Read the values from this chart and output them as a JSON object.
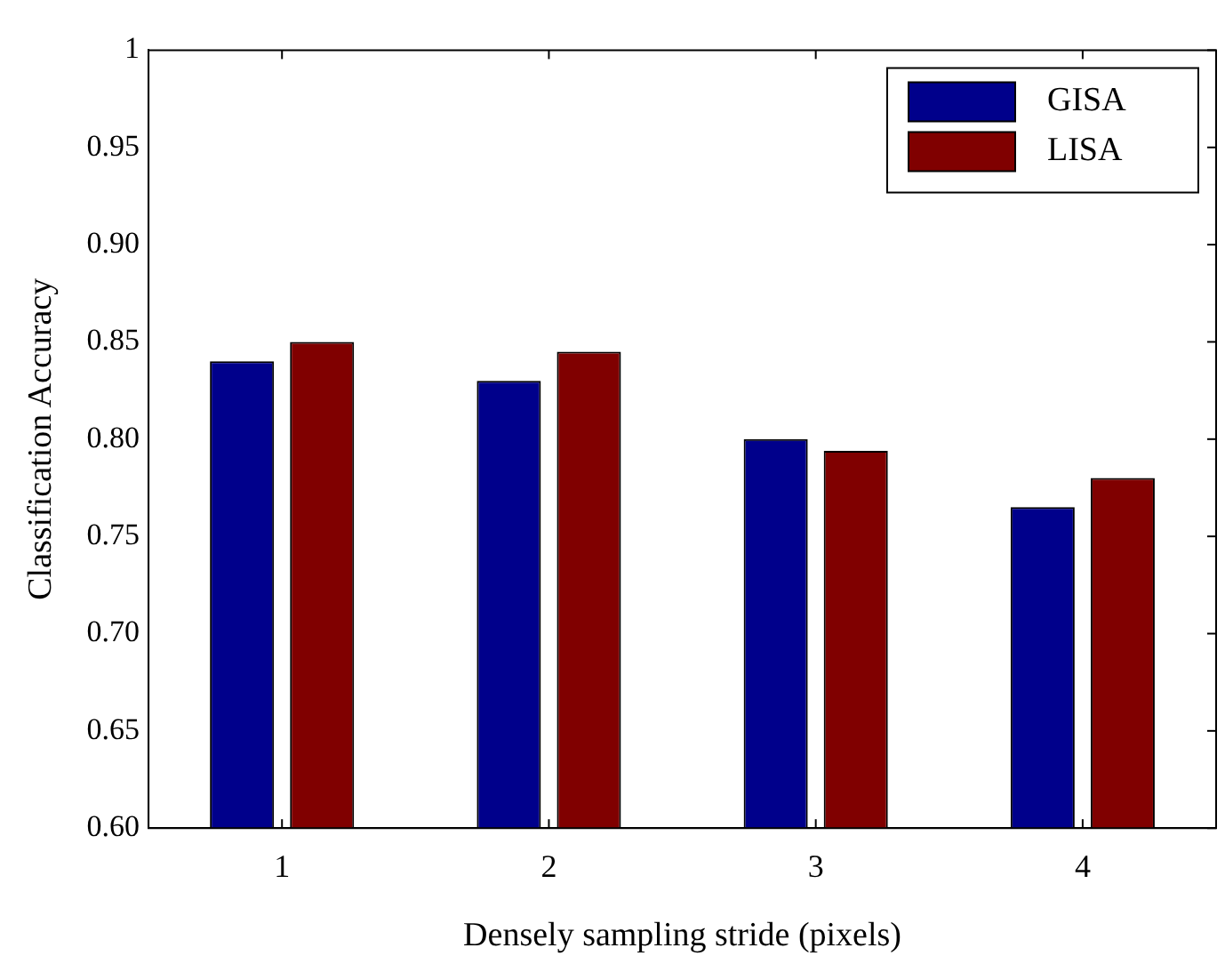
{
  "chart_data": {
    "type": "bar",
    "xlabel": "Densely sampling stride (pixels)",
    "ylabel": "Classification Accuracy",
    "categories": [
      "1",
      "2",
      "3",
      "4"
    ],
    "series": [
      {
        "name": "GISA",
        "color": "#00008b",
        "values": [
          0.84,
          0.83,
          0.8,
          0.765
        ]
      },
      {
        "name": "LISA",
        "color": "#800000",
        "values": [
          0.85,
          0.845,
          0.794,
          0.78
        ]
      }
    ],
    "ylim": [
      0.6,
      1
    ],
    "yticks": [
      {
        "value": 0.6,
        "label": "0.60"
      },
      0.65,
      {
        "value": 0.7,
        "label": "0.70"
      },
      0.75,
      {
        "value": 0.8,
        "label": "0.80"
      },
      0.85,
      {
        "value": 0.9,
        "label": "0.90"
      },
      0.95,
      1
    ],
    "grid": false,
    "legend": "top right"
  }
}
